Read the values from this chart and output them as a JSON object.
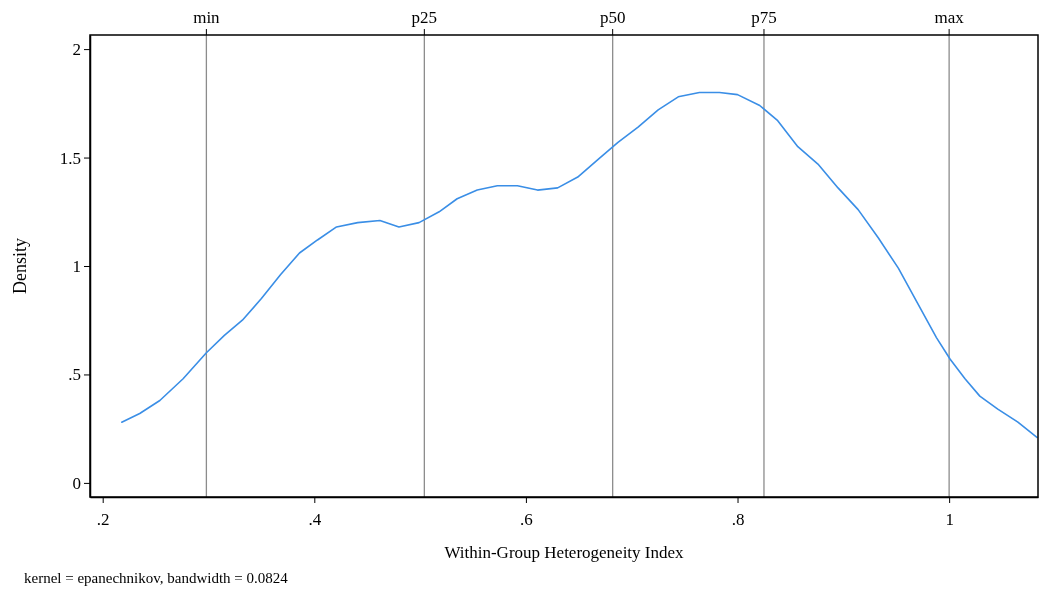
{
  "chart_data": {
    "type": "line",
    "xlabel": "Within-Group Heterogeneity Index",
    "ylabel": "Density",
    "annotations": [
      "kernel = epanechnikov, bandwidth = 0.0824"
    ],
    "xlim": [
      0.188,
      1.084
    ],
    "ylim": [
      -0.065,
      2.065
    ],
    "xticks": [
      {
        "value": 0.2,
        "label": ".2"
      },
      {
        "value": 0.4,
        "label": ".4"
      },
      {
        "value": 0.6,
        "label": ".6"
      },
      {
        "value": 0.8,
        "label": ".8"
      },
      1
    ],
    "yticks": [
      0,
      {
        "value": 0.5,
        "label": ".5"
      },
      1,
      1.5,
      2
    ],
    "grid": false,
    "marker": "none",
    "line_style": "solid",
    "ref_lines": [
      {
        "axis": "x",
        "value": 0.298,
        "label": "min",
        "color": "#8c8c8c"
      },
      {
        "axis": "x",
        "value": 0.504,
        "label": "p25",
        "color": "#8c8c8c"
      },
      {
        "axis": "x",
        "value": 0.682,
        "label": "p50",
        "color": "#8c8c8c"
      },
      {
        "axis": "x",
        "value": 0.825,
        "label": "p75",
        "color": "#8c8c8c"
      },
      {
        "axis": "x",
        "value": 1.0,
        "label": "max",
        "color": "#8c8c8c"
      }
    ],
    "series": [
      {
        "color": "#3a8ee6",
        "x": [
          0.218,
          0.235,
          0.254,
          0.276,
          0.298,
          0.315,
          0.332,
          0.35,
          0.368,
          0.386,
          0.403,
          0.421,
          0.441,
          0.462,
          0.48,
          0.499,
          0.518,
          0.535,
          0.554,
          0.573,
          0.592,
          0.611,
          0.63,
          0.649,
          0.668,
          0.687,
          0.706,
          0.725,
          0.744,
          0.764,
          0.783,
          0.8,
          0.821,
          0.838,
          0.857,
          0.876,
          0.895,
          0.914,
          0.933,
          0.952,
          0.97,
          0.988,
          1.001,
          1.015,
          1.029,
          1.046,
          1.065,
          1.083
        ],
        "values": [
          0.28,
          0.32,
          0.38,
          0.48,
          0.6,
          0.68,
          0.75,
          0.85,
          0.96,
          1.06,
          1.12,
          1.18,
          1.2,
          1.21,
          1.18,
          1.2,
          1.25,
          1.31,
          1.35,
          1.37,
          1.37,
          1.35,
          1.36,
          1.41,
          1.49,
          1.57,
          1.64,
          1.72,
          1.78,
          1.8,
          1.8,
          1.79,
          1.74,
          1.67,
          1.55,
          1.47,
          1.36,
          1.26,
          1.13,
          0.99,
          0.83,
          0.67,
          0.57,
          0.48,
          0.4,
          0.34,
          0.28,
          0.21
        ]
      }
    ]
  }
}
